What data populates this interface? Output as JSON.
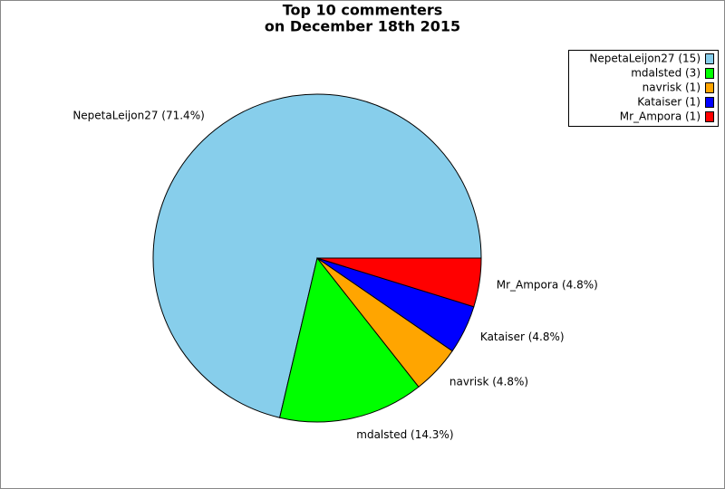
{
  "chart_data": {
    "type": "pie",
    "title": [
      "Top 10 commenters",
      "on December 18th 2015"
    ],
    "categories": [
      "NepetaLeijon27 (15)",
      "mdalsted (3)",
      "navrisk (1)",
      "Kataiser (1)",
      "Mr_Ampora (1)"
    ],
    "values": [
      71.4,
      14.3,
      4.8,
      4.8,
      4.8
    ],
    "value_labels": [
      "NepetaLeijon27 (71.4%)",
      "mdalsted (14.3%)",
      "navrisk (4.8%)",
      "Kataiser (4.8%)",
      "Mr_Ampora (4.8%)"
    ],
    "colors": [
      "#87ceeb",
      "#00ff00",
      "#ffa500",
      "#0000ff",
      "#ff0000"
    ],
    "legend": "upper right"
  }
}
